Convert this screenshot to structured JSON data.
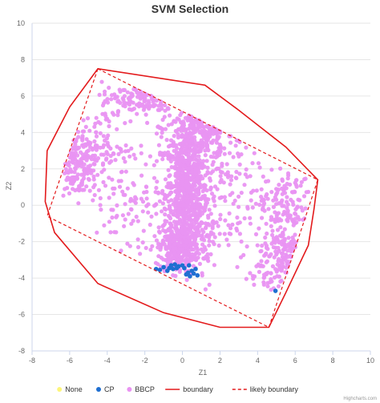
{
  "chart_data": {
    "type": "scatter",
    "title": "SVM Selection",
    "xlabel": "Z1",
    "ylabel": "Z2",
    "xlim": [
      -8,
      10
    ],
    "ylim": [
      -8,
      10
    ],
    "x_ticks": [
      -8,
      -6,
      -4,
      -2,
      0,
      2,
      4,
      6,
      8,
      10
    ],
    "y_ticks": [
      -8,
      -6,
      -4,
      -2,
      0,
      2,
      4,
      6,
      8,
      10
    ],
    "grid": "horizontal",
    "legend_position": "bottom",
    "credits": "Highcharts.com",
    "series": [
      {
        "name": "None",
        "kind": "scatter",
        "color": "#fdf57a",
        "points": []
      },
      {
        "name": "CP",
        "kind": "scatter",
        "color": "#1f6fd1",
        "points": [
          [
            -1.4,
            -3.5
          ],
          [
            -1.2,
            -3.55
          ],
          [
            -1.0,
            -3.4
          ],
          [
            -0.8,
            -3.6
          ],
          [
            -0.6,
            -3.3
          ],
          [
            -0.5,
            -3.5
          ],
          [
            -0.4,
            -3.25
          ],
          [
            -0.3,
            -3.45
          ],
          [
            -0.2,
            -3.35
          ],
          [
            0.0,
            -3.3
          ],
          [
            0.1,
            -3.45
          ],
          [
            0.2,
            -3.8
          ],
          [
            0.35,
            -3.3
          ],
          [
            0.4,
            -3.9
          ],
          [
            0.5,
            -3.6
          ],
          [
            0.6,
            -3.75
          ],
          [
            0.7,
            -3.5
          ],
          [
            0.8,
            -3.85
          ],
          [
            0.3,
            -3.7
          ],
          [
            -0.7,
            -3.45
          ],
          [
            4.95,
            -4.7
          ]
        ]
      },
      {
        "name": "BBCP",
        "kind": "scatter",
        "color": "#e993f2",
        "generated": true,
        "clusters": [
          {
            "cx": 0.2,
            "cy": 0.5,
            "sx": 0.55,
            "sy": 1.9,
            "n": 650
          },
          {
            "cx": -0.3,
            "cy": -2.4,
            "sx": 0.45,
            "sy": 0.65,
            "n": 260
          },
          {
            "cx": 0.5,
            "cy": 2.8,
            "sx": 0.9,
            "sy": 1.2,
            "n": 200
          },
          {
            "cx": 1.8,
            "cy": 4.3,
            "sx": 1.2,
            "sy": 0.6,
            "n": 120
          },
          {
            "cx": -5.6,
            "cy": 2.2,
            "sx": 0.5,
            "sy": 0.9,
            "n": 150
          },
          {
            "cx": -4.6,
            "cy": 3.2,
            "sx": 0.9,
            "sy": 1.0,
            "n": 80
          },
          {
            "cx": -2.2,
            "cy": 5.8,
            "sx": 1.1,
            "sy": 0.5,
            "n": 120
          },
          {
            "cx": -2.2,
            "cy": 0.3,
            "sx": 1.7,
            "sy": 1.7,
            "n": 140
          },
          {
            "cx": 2.6,
            "cy": 0.2,
            "sx": 1.3,
            "sy": 1.6,
            "n": 130
          },
          {
            "cx": 5.3,
            "cy": -2.6,
            "sx": 0.55,
            "sy": 0.8,
            "n": 120
          },
          {
            "cx": 5.5,
            "cy": 0.2,
            "sx": 0.7,
            "sy": 1.0,
            "n": 110
          },
          {
            "cx": 4.5,
            "cy": -3.8,
            "sx": 0.5,
            "sy": 0.5,
            "n": 40
          },
          {
            "cx": 1.2,
            "cy": -1.6,
            "sx": 0.45,
            "sy": 1.1,
            "n": 60
          }
        ]
      },
      {
        "name": "boundary",
        "kind": "line",
        "color": "#e31a1c",
        "dash": "solid",
        "closed": true,
        "points": [
          [
            -4.5,
            7.5
          ],
          [
            1.2,
            6.6
          ],
          [
            2.9,
            5.3
          ],
          [
            5.5,
            3.2
          ],
          [
            7.2,
            1.4
          ],
          [
            7.0,
            -0.2
          ],
          [
            6.7,
            -2.2
          ],
          [
            5.5,
            -4.8
          ],
          [
            4.6,
            -6.7
          ],
          [
            2.0,
            -6.7
          ],
          [
            -1.0,
            -5.9
          ],
          [
            -4.5,
            -4.3
          ],
          [
            -6.8,
            -1.5
          ],
          [
            -7.3,
            0.2
          ],
          [
            -7.2,
            3.0
          ],
          [
            -6.0,
            5.4
          ]
        ]
      },
      {
        "name": "likely boundary",
        "kind": "line",
        "color": "#e31a1c",
        "dash": "dashed",
        "closed": true,
        "points": [
          [
            -4.5,
            7.5
          ],
          [
            7.2,
            1.4
          ],
          [
            4.6,
            -6.7
          ],
          [
            -7.2,
            -0.6
          ]
        ]
      }
    ]
  }
}
